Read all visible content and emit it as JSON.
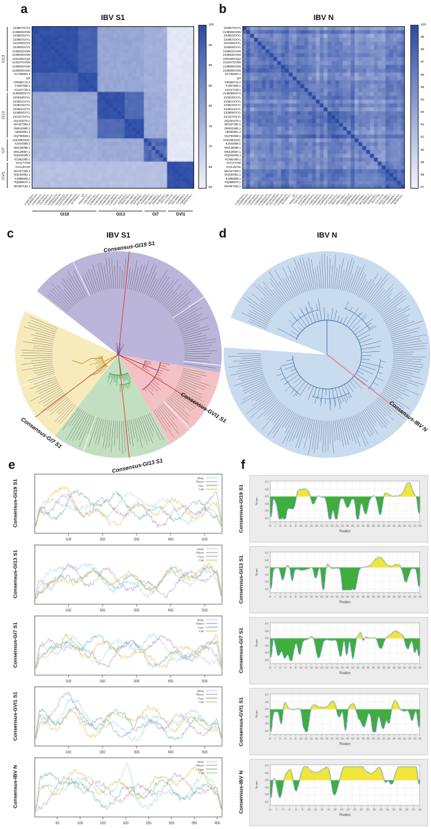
{
  "panel_letters": {
    "a": "a",
    "b": "b",
    "c": "c",
    "d": "d",
    "e": "e",
    "f": "f"
  },
  "sequences": {
    "groups": [
      {
        "name": "GI19",
        "labels": [
          "210807GXYL",
          "210896GXNN",
          "210853GXYL",
          "210857GXYL",
          "210196GXYL",
          "210806GXYL",
          "210892GXNN",
          "210893GXNN",
          "220150GXQZ",
          "219197GXNN",
          "210898GXNN",
          "210899GXNN",
          "KC795604.1",
          "QX",
          "OR966713.1",
          "FJ807928.1",
          "KX107729.1"
        ]
      },
      {
        "name": "GI13",
        "labels": [
          "210808GDYX",
          "210818GXYL",
          "210821GXYL",
          "210824GXYL",
          "210831GXYL",
          "210859GXYL",
          "210127GXYL",
          "DQ434270.1",
          "MH427393.1",
          "OM912680.1",
          "AB363951.2",
          "DQ790928.1"
        ]
      },
      {
        "name": "GI7",
        "labels": [
          "220198GDZC",
          "KJ544558.1",
          "MN128088.1",
          "MN128087.1",
          "DQ646405.2",
          "KC852260.1"
        ]
      },
      {
        "name": "GVI1",
        "labels": [
          "GVI1TJ790",
          "GVI1JN791",
          "MH427409.1",
          "DQ169481.1",
          "KJ999805.1",
          "PQ858574.1",
          "MH397184.1"
        ]
      }
    ]
  },
  "colors": {
    "heat_dark": "#2a4aa4",
    "heat_light": "#f3f4fc",
    "sector_gi19": "#b5afd7",
    "sector_gvi1": "#f2bcbe",
    "sector_gi13": "#bedcbc",
    "sector_gi7": "#f6e9b6",
    "tree_d_disc": "#c9dbee",
    "consensus_line": "#cf4a42",
    "helix": "#9ed3e8",
    "sheet": "#a98fc0",
    "turn": "#4daf94",
    "coil": "#e6b33f",
    "area_above": "#f0e63c",
    "area_below": "#3fae3c",
    "area_line": "#3a78b5",
    "panel_gray": "#ececec"
  },
  "chart_data": [
    {
      "id": "a",
      "type": "heatmap",
      "title": "IBV S1",
      "n": 42,
      "groups": [
        "GI19",
        "GI13",
        "GI7",
        "GVI1"
      ],
      "group_sizes": [
        17,
        12,
        6,
        7
      ],
      "block_identity_pct": [
        [
          98,
          79,
          77,
          64
        ],
        [
          79,
          98,
          78,
          64
        ],
        [
          77,
          78,
          93,
          64
        ],
        [
          64,
          64,
          64,
          98
        ]
      ],
      "gvi1_upper_triangle_pct": 63.5,
      "gvi1_lower_triangle_pct": 73,
      "diagonal_pct": 100,
      "colorbar": {
        "min": 60,
        "max": 100,
        "ticks": [
          100,
          95,
          90,
          85,
          80,
          75,
          70,
          65,
          60
        ]
      }
    },
    {
      "id": "b",
      "type": "heatmap",
      "title": "IBV N",
      "n": 42,
      "identity_range_pct": [
        87,
        100
      ],
      "diagonal_pct": 100,
      "colorbar": {
        "min": 87,
        "max": 100,
        "ticks": [
          100,
          99,
          98,
          97,
          96,
          95,
          94,
          93,
          92,
          91,
          90,
          89,
          88,
          87
        ]
      }
    },
    {
      "id": "c",
      "type": "circular-tree",
      "title": "IBV S1",
      "sectors": [
        {
          "name": "GI19",
          "color": "#b5afd7",
          "a0": 308,
          "a1": 460
        },
        {
          "name": "GVI1",
          "color": "#f2bcbe",
          "a0": 100,
          "a1": 150
        },
        {
          "name": "GI13",
          "color": "#bedcbc",
          "a0": 150,
          "a1": 218
        },
        {
          "name": "GI7",
          "color": "#f6e9b6",
          "a0": 218,
          "a1": 295
        }
      ],
      "consensus_lines": [
        {
          "label": "Consensus-GI19 S1",
          "angle_deg": 6
        },
        {
          "label": "Consensus-GVI1 S1",
          "angle_deg": 122
        },
        {
          "label": "Consensus-GI13 S1",
          "angle_deg": 174
        },
        {
          "label": "Consensus-GI7 S1",
          "angle_deg": 233
        }
      ]
    },
    {
      "id": "d",
      "type": "circular-tree",
      "title": "IBV N",
      "disc_color": "#c9dbee",
      "gap": [
        274,
        291
      ],
      "consensus_lines": [
        {
          "label": "Consensus-IBV N",
          "angle_deg": 128
        }
      ]
    },
    {
      "id": "e",
      "type": "line",
      "series": [
        {
          "name": "Helix",
          "color": "#9ed3e8"
        },
        {
          "name": "Sheet",
          "color": "#a98fc0"
        },
        {
          "name": "Turn",
          "color": "#4daf94"
        },
        {
          "name": "Coil",
          "color": "#e6b33f"
        }
      ],
      "subplots": [
        {
          "label": "Consensus-GI19 S1",
          "x_ticks": [
            100,
            200,
            300,
            400,
            500
          ],
          "x_max": 550
        },
        {
          "label": "Consensus-GI13 S1",
          "x_ticks": [
            100,
            200,
            300,
            400,
            500
          ],
          "x_max": 550
        },
        {
          "label": "Consensus-GI7 S1",
          "x_ticks": [
            100,
            200,
            300,
            400,
            500
          ],
          "x_max": 550
        },
        {
          "label": "Consensus-GVI1 S1",
          "x_ticks": [
            100,
            200,
            300,
            400,
            500
          ],
          "x_max": 550
        },
        {
          "label": "Consensus-IBV N",
          "x_ticks": [
            50,
            100,
            150,
            200,
            250,
            300,
            350,
            400
          ],
          "x_max": 410
        }
      ]
    },
    {
      "id": "f",
      "type": "area",
      "xlabel": "Position",
      "ylabel": "Score",
      "threshold": 0.5,
      "y_ticks": [
        0.2,
        0.3,
        0.4,
        0.5,
        0.6,
        0.7
      ],
      "colors": {
        "above": "#f0e63c",
        "below": "#3fae3c",
        "line": "#3a78b5"
      },
      "subplots": [
        {
          "label": "Consensus-GI19 S1",
          "x_range": [
            -20,
            560
          ]
        },
        {
          "label": "Consensus-GI13 S1",
          "x_range": [
            -20,
            560
          ]
        },
        {
          "label": "Consensus-GI7 S1",
          "x_range": [
            -20,
            560
          ]
        },
        {
          "label": "Consensus-GVI1 S1",
          "x_range": [
            -20,
            560
          ]
        },
        {
          "label": "Consensus-IBV N",
          "x_range": [
            -20,
            440
          ]
        }
      ]
    }
  ]
}
